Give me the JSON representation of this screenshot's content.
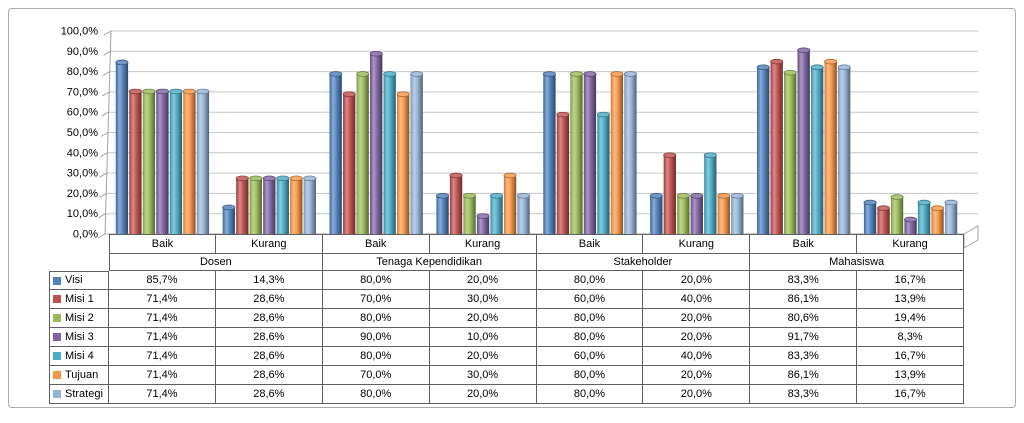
{
  "figure": {
    "background": "#ffffff",
    "border_color": "#ababab"
  },
  "chart_data": {
    "type": "bar",
    "subtype": "3d-cylinder-clustered",
    "title": "",
    "xlabel": "",
    "ylabel": "",
    "ylim": [
      0,
      100
    ],
    "grid": true,
    "legend_position": "data-table-left-column",
    "y_axis_ticks": [
      "100,0%",
      "90,0%",
      "80,0%",
      "70,0%",
      "60,0%",
      "50,0%",
      "40,0%",
      "30,0%",
      "20,0%",
      "10,0%",
      "0,0%"
    ],
    "categories": [
      "Baik",
      "Kurang",
      "Baik",
      "Kurang",
      "Baik",
      "Kurang",
      "Baik",
      "Kurang"
    ],
    "category_groups": [
      {
        "label": "Dosen",
        "span": 2
      },
      {
        "label": "Tenaga Kependidikan",
        "span": 2
      },
      {
        "label": "Stakeholder",
        "span": 2
      },
      {
        "label": "Mahasiswa",
        "span": 2
      }
    ],
    "series": [
      {
        "name": "Visi",
        "color": "#4F81BD",
        "values": [
          85.7,
          14.3,
          80.0,
          20.0,
          80.0,
          20.0,
          83.3,
          16.7
        ],
        "labels": [
          "85,7%",
          "14,3%",
          "80,0%",
          "20,0%",
          "80,0%",
          "20,0%",
          "83,3%",
          "16,7%"
        ]
      },
      {
        "name": "Misi 1",
        "color": "#C0504D",
        "values": [
          71.4,
          28.6,
          70.0,
          30.0,
          60.0,
          40.0,
          86.1,
          13.9
        ],
        "labels": [
          "71,4%",
          "28,6%",
          "70,0%",
          "30,0%",
          "60,0%",
          "40,0%",
          "86,1%",
          "13,9%"
        ]
      },
      {
        "name": "Misi 2",
        "color": "#9BBB59",
        "values": [
          71.4,
          28.6,
          80.0,
          20.0,
          80.0,
          20.0,
          80.6,
          19.4
        ],
        "labels": [
          "71,4%",
          "28,6%",
          "80,0%",
          "20,0%",
          "80,0%",
          "20,0%",
          "80,6%",
          "19,4%"
        ]
      },
      {
        "name": "Misi 3",
        "color": "#8064A2",
        "values": [
          71.4,
          28.6,
          90.0,
          10.0,
          80.0,
          20.0,
          91.7,
          8.3
        ],
        "labels": [
          "71,4%",
          "28,6%",
          "90,0%",
          "10,0%",
          "80,0%",
          "20,0%",
          "91,7%",
          "8,3%"
        ]
      },
      {
        "name": "Misi 4",
        "color": "#4BACC6",
        "values": [
          71.4,
          28.6,
          80.0,
          20.0,
          60.0,
          40.0,
          83.3,
          16.7
        ],
        "labels": [
          "71,4%",
          "28,6%",
          "80,0%",
          "20,0%",
          "60,0%",
          "40,0%",
          "83,3%",
          "16,7%"
        ]
      },
      {
        "name": "Tujuan",
        "color": "#F79646",
        "values": [
          71.4,
          28.6,
          70.0,
          30.0,
          80.0,
          20.0,
          86.1,
          13.9
        ],
        "labels": [
          "71,4%",
          "28,6%",
          "70,0%",
          "30,0%",
          "80,0%",
          "20,0%",
          "86,1%",
          "13,9%"
        ]
      },
      {
        "name": "Strategi",
        "color": "#95B3D7",
        "values": [
          71.4,
          28.6,
          80.0,
          20.0,
          80.0,
          20.0,
          83.3,
          16.7
        ],
        "labels": [
          "71,4%",
          "28,6%",
          "80,0%",
          "20,0%",
          "80,0%",
          "20,0%",
          "83,3%",
          "16,7%"
        ]
      }
    ],
    "colors": {
      "gridline": "#c6c6c6",
      "axis": "#a3a3a3",
      "table_border": "#5f5f5f",
      "text": "#000000"
    }
  }
}
